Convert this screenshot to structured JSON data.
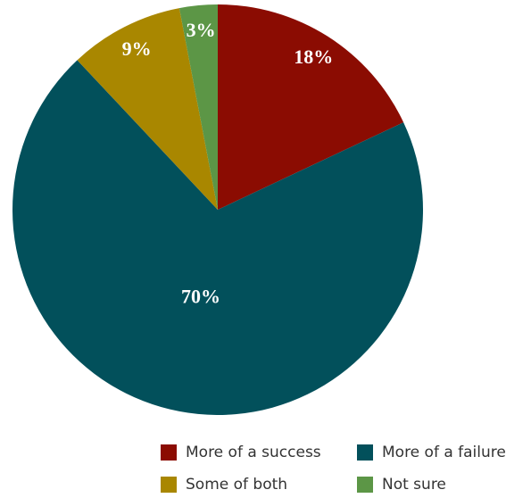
{
  "chart_data": {
    "type": "pie",
    "categories": [
      "More of a success",
      "More of a failure",
      "Some of both",
      "Not sure"
    ],
    "values": [
      18,
      70,
      9,
      3
    ],
    "value_labels": [
      "18%",
      "70%",
      "9%",
      "3%"
    ],
    "colors": [
      "#8b0c02",
      "#02505b",
      "#a98700",
      "#5c9646"
    ],
    "legend": "bottom-right"
  }
}
